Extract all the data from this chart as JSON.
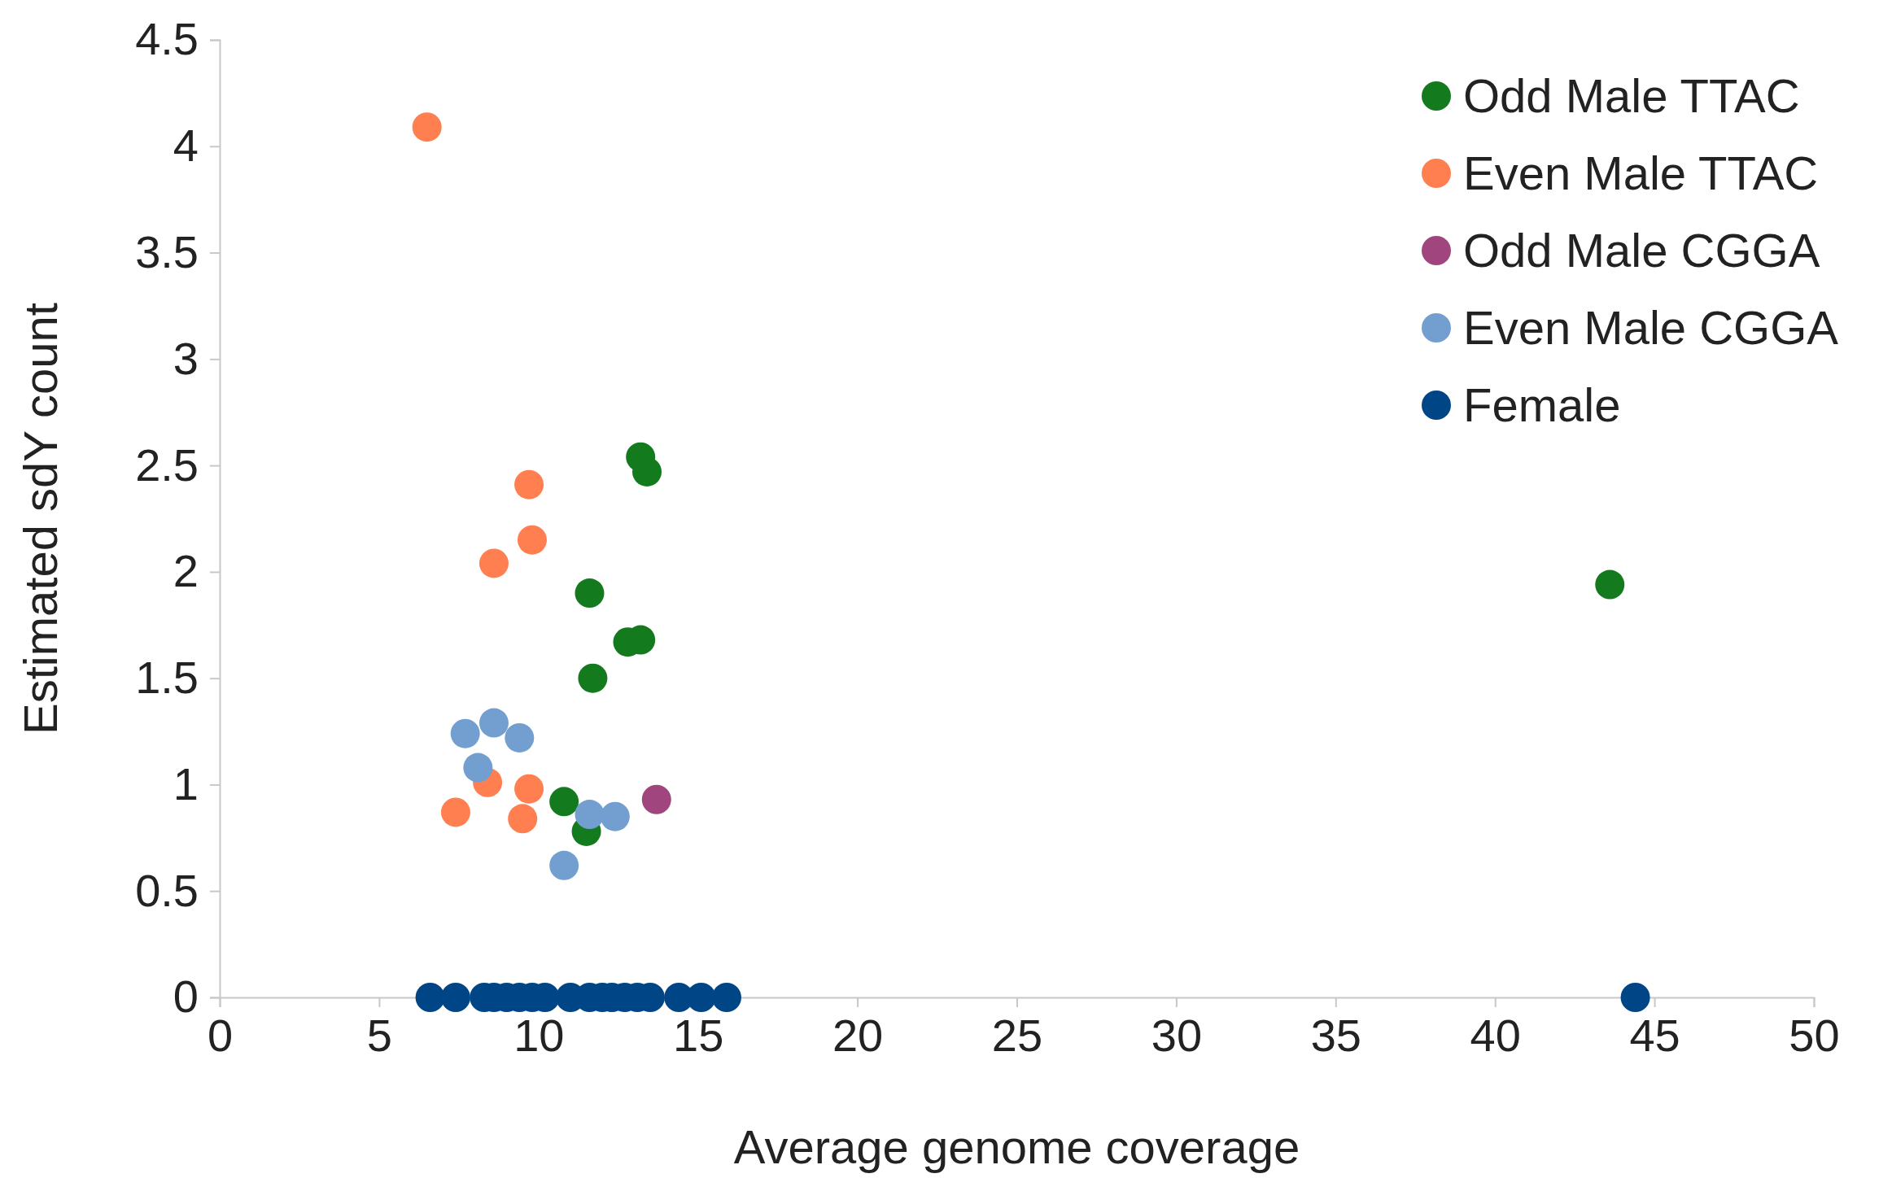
{
  "chart_data": {
    "type": "scatter",
    "xlabel": "Average genome coverage",
    "ylabel": "Estimated sdY count",
    "xlim": [
      0,
      50
    ],
    "xticks": [
      0,
      5,
      10,
      15,
      20,
      25,
      30,
      35,
      40,
      45,
      50
    ],
    "ylim": [
      0,
      4.5
    ],
    "yticks": [
      0,
      0.5,
      1,
      1.5,
      2,
      2.5,
      3,
      3.5,
      4,
      4.5
    ],
    "grid": false,
    "legend": "top right",
    "marker": "circle",
    "series": [
      {
        "name": "Odd Male TTAC",
        "color": "#147a1e",
        "x": [
          13.2,
          13.4,
          11.6,
          12.8,
          13.2,
          11.7,
          10.8,
          11.5,
          43.6
        ],
        "values": [
          2.54,
          2.47,
          1.9,
          1.67,
          1.68,
          1.5,
          0.92,
          0.78,
          1.94
        ]
      },
      {
        "name": "Even Male TTAC",
        "color": "#ff7f50",
        "x": [
          6.5,
          9.7,
          9.8,
          8.6,
          7.4,
          8.4,
          9.7,
          9.5
        ],
        "values": [
          4.09,
          2.41,
          2.15,
          2.04,
          0.87,
          1.01,
          0.98,
          0.84
        ]
      },
      {
        "name": "Odd Male CGGA",
        "color": "#a0457e",
        "x": [
          13.7
        ],
        "values": [
          0.93
        ]
      },
      {
        "name": "Even Male CGGA",
        "color": "#729fcf",
        "x": [
          7.7,
          8.6,
          9.4,
          8.1,
          10.8,
          11.6,
          12.4
        ],
        "values": [
          1.24,
          1.29,
          1.22,
          1.08,
          0.62,
          0.86,
          0.85
        ]
      },
      {
        "name": "Female",
        "color": "#004586",
        "x": [
          6.6,
          7.4,
          8.3,
          8.6,
          9.0,
          9.4,
          9.8,
          10.2,
          11.0,
          11.6,
          12.0,
          12.3,
          12.7,
          13.1,
          13.5,
          14.4,
          15.1,
          15.9,
          44.4
        ],
        "values": [
          0,
          0,
          0,
          0,
          0,
          0,
          0,
          0,
          0,
          0,
          0,
          0,
          0,
          0,
          0,
          0,
          0,
          0,
          0
        ]
      }
    ]
  }
}
